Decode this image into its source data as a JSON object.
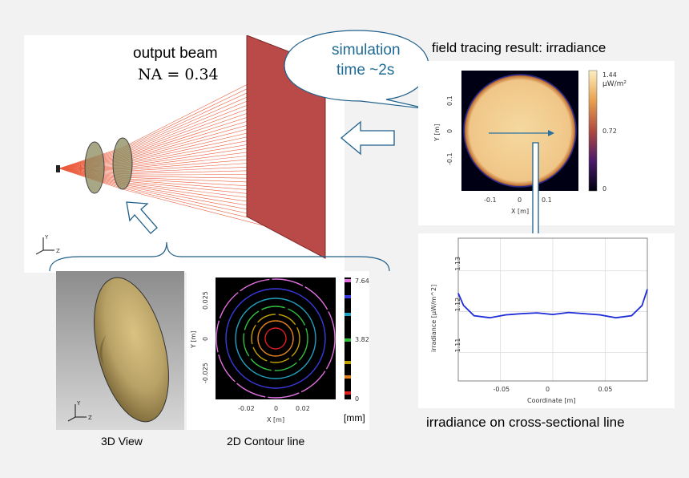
{
  "raytrace": {
    "title": "output beam",
    "na_label": "NA = 0.34",
    "axis_y": "Y",
    "axis_z": "Z"
  },
  "bubble": {
    "line1": "simulation",
    "line2": "time ~2s",
    "color": "#1f5f8b"
  },
  "irradiance_plot": {
    "title": "field tracing result: irradiance",
    "xlabel": "X [m]",
    "ylabel": "Y [m]",
    "xticks": [
      "-0.1",
      "0",
      "0.1"
    ],
    "yticks": [
      "0.1",
      "0",
      "-0.1"
    ],
    "colorbar_ticks": [
      "1.44",
      "0.72",
      "0"
    ],
    "colorbar_unit": "µW/m²"
  },
  "cross_section": {
    "caption": "irradiance on cross-sectional line",
    "chart_data": {
      "type": "line",
      "title": "",
      "xlabel": "Coordinate [m]",
      "ylabel": "irradiance [µW/m^2]",
      "xlim": [
        -0.09,
        0.09
      ],
      "ylim": [
        1.103,
        1.138
      ],
      "xticks": [
        "-0.05",
        "0",
        "0.05"
      ],
      "yticks": [
        "1.11",
        "1.12",
        "1.13"
      ],
      "x": [
        -0.09,
        -0.085,
        -0.075,
        -0.06,
        -0.045,
        -0.03,
        -0.015,
        0,
        0.015,
        0.03,
        0.045,
        0.06,
        0.075,
        0.085,
        0.09
      ],
      "y": [
        1.1245,
        1.1215,
        1.119,
        1.1185,
        1.1192,
        1.1195,
        1.1197,
        1.1193,
        1.1198,
        1.1195,
        1.1192,
        1.1185,
        1.119,
        1.1215,
        1.1255
      ],
      "color": "#1d2bd8"
    }
  },
  "view3d": {
    "caption": "3D View",
    "axis_y": "Y",
    "axis_z": "Z"
  },
  "contour": {
    "caption": "2D Contour line",
    "xlabel": "X [m]",
    "ylabel": "Y [m]",
    "xticks": [
      "-0.02",
      "0",
      "0.02"
    ],
    "yticks": [
      "0.025",
      "0",
      "-0.025"
    ],
    "colorbar_ticks": [
      "7.64",
      "3.82",
      "0"
    ],
    "unit": "[mm]"
  }
}
